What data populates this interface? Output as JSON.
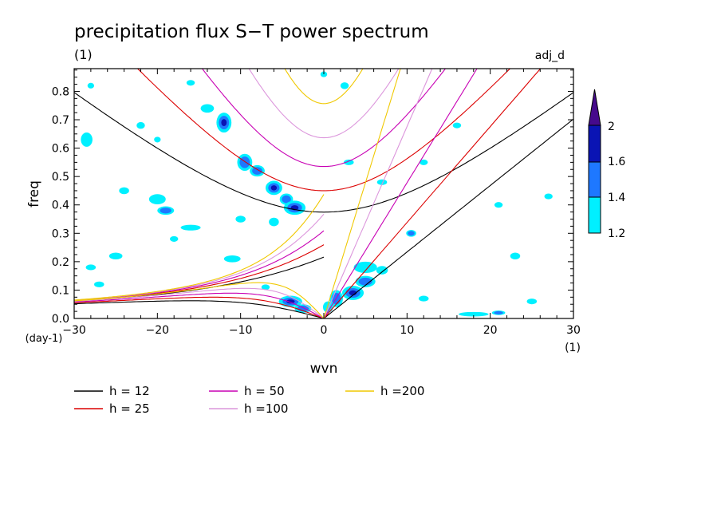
{
  "chart_data": {
    "type": "heatmap",
    "title": "precipitation flux S−T power spectrum",
    "subtitle_left": "(1)",
    "subtitle_right": "adj_d",
    "xlabel": "wvn",
    "ylabel": "freq",
    "x_unit": "(1)",
    "y_unit": "(day-1)",
    "xlim": [
      -30,
      30
    ],
    "ylim": [
      0,
      0.88
    ],
    "xticks": [
      -30,
      -20,
      -10,
      0,
      10,
      20,
      30
    ],
    "xtick_labels": [
      "−30",
      "−20",
      "−10",
      "0",
      "10",
      "20",
      "30"
    ],
    "yticks": [
      0,
      0.1,
      0.2,
      0.3,
      0.4,
      0.5,
      0.6,
      0.7,
      0.8
    ],
    "ytick_labels": [
      "0.0",
      "0.1",
      "0.2",
      "0.3",
      "0.4",
      "0.5",
      "0.6",
      "0.7",
      "0.8"
    ],
    "colorbar": {
      "levels": [
        1.2,
        1.4,
        1.6,
        2
      ],
      "labels": [
        "1.2",
        "1.4",
        "1.6",
        "2"
      ],
      "colors": [
        "#00f0ff",
        "#1e78ff",
        "#0a14b4",
        "#460a8c"
      ]
    },
    "dispersion_curves": [
      {
        "name": "h = 12",
        "h": 12,
        "color": "#000000"
      },
      {
        "name": "h = 25",
        "h": 25,
        "color": "#dc0000"
      },
      {
        "name": "h = 50",
        "h": 50,
        "color": "#c800b4"
      },
      {
        "name": "h =100",
        "h": 100,
        "color": "#dc96dc"
      },
      {
        "name": "h =200",
        "h": 200,
        "color": "#f0c800"
      }
    ],
    "blobs": [
      {
        "x": -12,
        "y": 0.69,
        "rx": 0.9,
        "ry": 0.035,
        "level": 3
      },
      {
        "x": -14,
        "y": 0.74,
        "rx": 0.8,
        "ry": 0.015,
        "level": 1
      },
      {
        "x": -9.5,
        "y": 0.55,
        "rx": 0.9,
        "ry": 0.03,
        "level": 2
      },
      {
        "x": -8,
        "y": 0.52,
        "rx": 0.9,
        "ry": 0.02,
        "level": 2
      },
      {
        "x": -6,
        "y": 0.46,
        "rx": 1.0,
        "ry": 0.025,
        "level": 3
      },
      {
        "x": -4.5,
        "y": 0.42,
        "rx": 0.8,
        "ry": 0.02,
        "level": 2
      },
      {
        "x": -3.5,
        "y": 0.39,
        "rx": 1.3,
        "ry": 0.025,
        "level": 3
      },
      {
        "x": -6,
        "y": 0.34,
        "rx": 0.6,
        "ry": 0.015,
        "level": 1
      },
      {
        "x": -20,
        "y": 0.42,
        "rx": 1.0,
        "ry": 0.018,
        "level": 1
      },
      {
        "x": -19,
        "y": 0.38,
        "rx": 1.0,
        "ry": 0.015,
        "level": 2
      },
      {
        "x": -24,
        "y": 0.45,
        "rx": 0.6,
        "ry": 0.012,
        "level": 1
      },
      {
        "x": -28.5,
        "y": 0.63,
        "rx": 0.7,
        "ry": 0.025,
        "level": 1
      },
      {
        "x": -22,
        "y": 0.68,
        "rx": 0.5,
        "ry": 0.012,
        "level": 1
      },
      {
        "x": -16,
        "y": 0.32,
        "rx": 1.2,
        "ry": 0.01,
        "level": 1
      },
      {
        "x": -25,
        "y": 0.22,
        "rx": 0.8,
        "ry": 0.012,
        "level": 1
      },
      {
        "x": -28,
        "y": 0.18,
        "rx": 0.6,
        "ry": 0.01,
        "level": 1
      },
      {
        "x": -27,
        "y": 0.12,
        "rx": 0.6,
        "ry": 0.01,
        "level": 1
      },
      {
        "x": -11,
        "y": 0.21,
        "rx": 1.0,
        "ry": 0.012,
        "level": 1
      },
      {
        "x": -18,
        "y": 0.28,
        "rx": 0.5,
        "ry": 0.01,
        "level": 1
      },
      {
        "x": -16,
        "y": 0.83,
        "rx": 0.5,
        "ry": 0.01,
        "level": 1
      },
      {
        "x": -28,
        "y": 0.82,
        "rx": 0.4,
        "ry": 0.01,
        "level": 1
      },
      {
        "x": -4,
        "y": 0.06,
        "rx": 1.4,
        "ry": 0.02,
        "level": 3
      },
      {
        "x": -2.5,
        "y": 0.035,
        "rx": 1.0,
        "ry": 0.015,
        "level": 2
      },
      {
        "x": 1.5,
        "y": 0.07,
        "rx": 0.8,
        "ry": 0.03,
        "level": 2
      },
      {
        "x": 3.5,
        "y": 0.09,
        "rx": 1.3,
        "ry": 0.025,
        "level": 3
      },
      {
        "x": 5,
        "y": 0.13,
        "rx": 1.2,
        "ry": 0.02,
        "level": 2
      },
      {
        "x": 5,
        "y": 0.18,
        "rx": 1.4,
        "ry": 0.02,
        "level": 1
      },
      {
        "x": 7,
        "y": 0.17,
        "rx": 0.7,
        "ry": 0.015,
        "level": 1
      },
      {
        "x": 10.5,
        "y": 0.3,
        "rx": 0.6,
        "ry": 0.012,
        "level": 2
      },
      {
        "x": 2.5,
        "y": 0.82,
        "rx": 0.5,
        "ry": 0.012,
        "level": 1
      },
      {
        "x": 0,
        "y": 0.86,
        "rx": 0.4,
        "ry": 0.01,
        "level": 1
      },
      {
        "x": 3,
        "y": 0.55,
        "rx": 0.6,
        "ry": 0.01,
        "level": 1
      },
      {
        "x": 7,
        "y": 0.48,
        "rx": 0.6,
        "ry": 0.01,
        "level": 1
      },
      {
        "x": 12,
        "y": 0.55,
        "rx": 0.5,
        "ry": 0.01,
        "level": 1
      },
      {
        "x": 12,
        "y": 0.07,
        "rx": 0.6,
        "ry": 0.01,
        "level": 1
      },
      {
        "x": 18,
        "y": 0.015,
        "rx": 1.8,
        "ry": 0.008,
        "level": 1
      },
      {
        "x": 21,
        "y": 0.02,
        "rx": 0.8,
        "ry": 0.008,
        "level": 2
      },
      {
        "x": 23,
        "y": 0.22,
        "rx": 0.6,
        "ry": 0.012,
        "level": 1
      },
      {
        "x": 27,
        "y": 0.43,
        "rx": 0.5,
        "ry": 0.01,
        "level": 1
      },
      {
        "x": 25,
        "y": 0.06,
        "rx": 0.6,
        "ry": 0.01,
        "level": 1
      },
      {
        "x": -10,
        "y": 0.35,
        "rx": 0.6,
        "ry": 0.012,
        "level": 1
      },
      {
        "x": 0.5,
        "y": 0.04,
        "rx": 0.6,
        "ry": 0.02,
        "level": 1
      },
      {
        "x": -7,
        "y": 0.11,
        "rx": 0.5,
        "ry": 0.01,
        "level": 1
      },
      {
        "x": -20,
        "y": 0.63,
        "rx": 0.4,
        "ry": 0.01,
        "level": 1
      },
      {
        "x": 16,
        "y": 0.68,
        "rx": 0.5,
        "ry": 0.01,
        "level": 1
      },
      {
        "x": 21,
        "y": 0.4,
        "rx": 0.5,
        "ry": 0.01,
        "level": 1
      }
    ]
  }
}
